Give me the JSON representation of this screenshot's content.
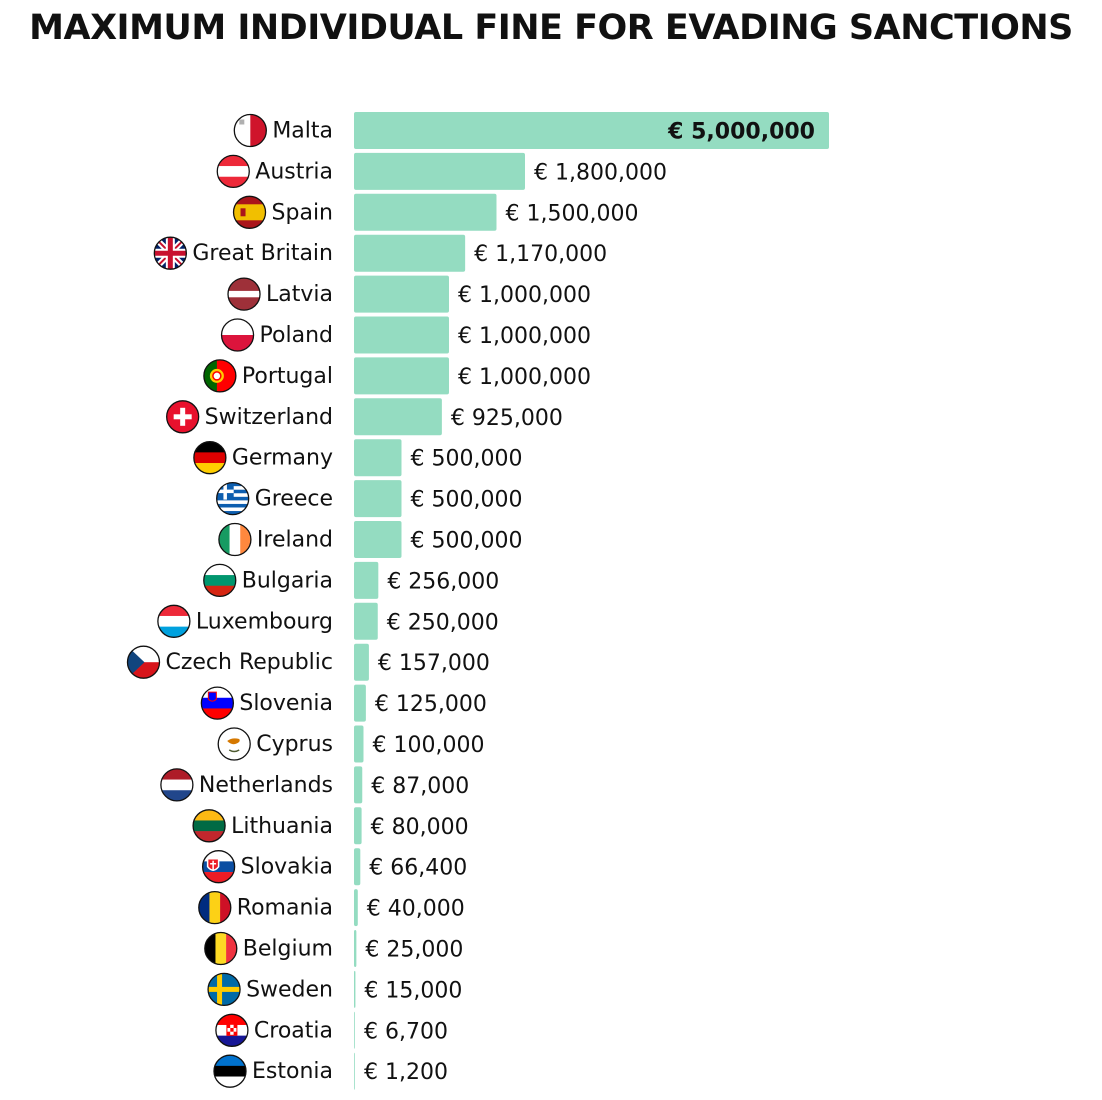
{
  "title": "MAXIMUM INDIVIDUAL FINE FOR EVADING SANCTIONS",
  "bar_color": "#94dcc1",
  "chart_data": {
    "type": "bar",
    "orientation": "horizontal",
    "title": "MAXIMUM INDIVIDUAL FINE FOR EVADING SANCTIONS",
    "categories": [
      "Malta",
      "Austria",
      "Spain",
      "Great Britain",
      "Latvia",
      "Poland",
      "Portugal",
      "Switzerland",
      "Germany",
      "Greece",
      "Ireland",
      "Bulgaria",
      "Luxembourg",
      "Czech Republic",
      "Slovenia",
      "Cyprus",
      "Netherlands",
      "Lithuania",
      "Slovakia",
      "Romania",
      "Belgium",
      "Sweden",
      "Croatia",
      "Estonia"
    ],
    "values": [
      5000000,
      1800000,
      1500000,
      1170000,
      1000000,
      1000000,
      1000000,
      925000,
      500000,
      500000,
      500000,
      256000,
      250000,
      157000,
      125000,
      100000,
      87000,
      80000,
      66400,
      40000,
      25000,
      15000,
      6700,
      1200
    ],
    "value_labels": [
      "€ 5,000,000",
      "€ 1,800,000",
      "€ 1,500,000",
      "€ 1,170,000",
      "€ 1,000,000",
      "€ 1,000,000",
      "€ 1,000,000",
      "€ 925,000",
      "€ 500,000",
      "€ 500,000",
      "€ 500,000",
      "€ 256,000",
      "€ 250,000",
      "€ 157,000",
      "€ 125,000",
      "€ 100,000",
      "€ 87,000",
      "€ 80,000",
      "€ 66,400",
      "€ 40,000",
      "€ 25,000",
      "€ 15,000",
      "€ 6,700",
      "€ 1,200"
    ],
    "flag_icons": [
      "flag-malta-icon",
      "flag-austria-icon",
      "flag-spain-icon",
      "flag-great-britain-icon",
      "flag-latvia-icon",
      "flag-poland-icon",
      "flag-portugal-icon",
      "flag-switzerland-icon",
      "flag-germany-icon",
      "flag-greece-icon",
      "flag-ireland-icon",
      "flag-bulgaria-icon",
      "flag-luxembourg-icon",
      "flag-czech-republic-icon",
      "flag-slovenia-icon",
      "flag-cyprus-icon",
      "flag-netherlands-icon",
      "flag-lithuania-icon",
      "flag-slovakia-icon",
      "flag-romania-icon",
      "flag-belgium-icon",
      "flag-sweden-icon",
      "flag-croatia-icon",
      "flag-estonia-icon"
    ],
    "xlim": [
      0,
      5000000
    ],
    "grid": false,
    "legend": "none",
    "xlabel": "",
    "ylabel": ""
  }
}
